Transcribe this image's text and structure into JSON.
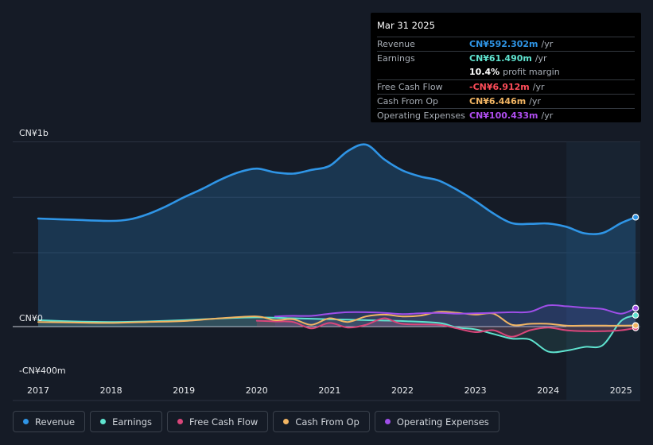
{
  "tooltip": {
    "date": "Mar 31 2025",
    "rows": [
      {
        "label": "Revenue",
        "value": "CN¥592.302m",
        "unit": "/yr",
        "color": "#2f95e6"
      },
      {
        "label": "Earnings",
        "value": "CN¥61.490m",
        "unit": "/yr",
        "color": "#5fe3cf"
      },
      {
        "label": "",
        "value": "10.4%",
        "unit": "profit margin",
        "color": "#ffffff"
      },
      {
        "label": "Free Cash Flow",
        "value": "-CN¥6.912m",
        "unit": "/yr",
        "color": "#ff4d5a"
      },
      {
        "label": "Cash From Op",
        "value": "CN¥6.446m",
        "unit": "/yr",
        "color": "#f2b563"
      },
      {
        "label": "Operating Expenses",
        "value": "CN¥100.433m",
        "unit": "/yr",
        "color": "#b04ef0"
      }
    ]
  },
  "legend": [
    {
      "label": "Revenue",
      "color": "#2f95e6"
    },
    {
      "label": "Earnings",
      "color": "#5fe3cf"
    },
    {
      "label": "Free Cash Flow",
      "color": "#d9467a"
    },
    {
      "label": "Cash From Op",
      "color": "#f2b563"
    },
    {
      "label": "Operating Expenses",
      "color": "#9f4ee8"
    }
  ],
  "chart_data": {
    "type": "area",
    "y_labels": {
      "top": "CN¥1b",
      "zero": "CN¥0",
      "bottom": "-CN¥400m"
    },
    "ylim": [
      -400,
      1000
    ],
    "x_ticks": [
      "2017",
      "2018",
      "2019",
      "2020",
      "2021",
      "2022",
      "2023",
      "2024",
      "2025"
    ],
    "xlim": [
      2016.7,
      2025.25
    ],
    "forecast_shade_start": 2024.25,
    "series": [
      {
        "name": "Revenue",
        "color": "#2f95e6",
        "fill": true,
        "points": [
          [
            2017.0,
            585
          ],
          [
            2017.5,
            578
          ],
          [
            2018.0,
            572
          ],
          [
            2018.25,
            580
          ],
          [
            2018.5,
            608
          ],
          [
            2018.75,
            650
          ],
          [
            2019.0,
            700
          ],
          [
            2019.25,
            745
          ],
          [
            2019.5,
            795
          ],
          [
            2019.75,
            835
          ],
          [
            2020.0,
            855
          ],
          [
            2020.25,
            835
          ],
          [
            2020.5,
            828
          ],
          [
            2020.75,
            848
          ],
          [
            2021.0,
            870
          ],
          [
            2021.25,
            950
          ],
          [
            2021.5,
            985
          ],
          [
            2021.75,
            905
          ],
          [
            2022.0,
            845
          ],
          [
            2022.25,
            812
          ],
          [
            2022.5,
            790
          ],
          [
            2022.75,
            740
          ],
          [
            2023.0,
            680
          ],
          [
            2023.25,
            612
          ],
          [
            2023.5,
            560
          ],
          [
            2023.75,
            556
          ],
          [
            2024.0,
            558
          ],
          [
            2024.25,
            540
          ],
          [
            2024.5,
            505
          ],
          [
            2024.75,
            507
          ],
          [
            2025.0,
            560
          ],
          [
            2025.2,
            592
          ]
        ]
      },
      {
        "name": "Earnings",
        "color": "#5fe3cf",
        "fill": true,
        "points": [
          [
            2017.0,
            35
          ],
          [
            2017.5,
            28
          ],
          [
            2018.0,
            25
          ],
          [
            2018.5,
            28
          ],
          [
            2019.0,
            35
          ],
          [
            2019.5,
            44
          ],
          [
            2020.0,
            50
          ],
          [
            2020.5,
            45
          ],
          [
            2021.0,
            40
          ],
          [
            2021.5,
            35
          ],
          [
            2022.0,
            30
          ],
          [
            2022.5,
            20
          ],
          [
            2022.75,
            -5
          ],
          [
            2023.0,
            -15
          ],
          [
            2023.25,
            -40
          ],
          [
            2023.5,
            -65
          ],
          [
            2023.75,
            -70
          ],
          [
            2024.0,
            -135
          ],
          [
            2024.25,
            -130
          ],
          [
            2024.5,
            -110
          ],
          [
            2024.75,
            -100
          ],
          [
            2025.0,
            30
          ],
          [
            2025.2,
            61
          ]
        ]
      },
      {
        "name": "Free Cash Flow",
        "color": "#d9467a",
        "fill": true,
        "points": [
          [
            2020.0,
            32
          ],
          [
            2020.25,
            28
          ],
          [
            2020.5,
            25
          ],
          [
            2020.75,
            -10
          ],
          [
            2021.0,
            20
          ],
          [
            2021.25,
            -5
          ],
          [
            2021.5,
            10
          ],
          [
            2021.75,
            45
          ],
          [
            2022.0,
            15
          ],
          [
            2022.5,
            10
          ],
          [
            2022.75,
            -10
          ],
          [
            2023.0,
            -30
          ],
          [
            2023.25,
            -20
          ],
          [
            2023.5,
            -55
          ],
          [
            2023.75,
            -20
          ],
          [
            2024.0,
            -5
          ],
          [
            2024.25,
            -20
          ],
          [
            2024.5,
            -25
          ],
          [
            2024.75,
            -25
          ],
          [
            2025.0,
            -20
          ],
          [
            2025.2,
            -7
          ]
        ]
      },
      {
        "name": "Cash From Op",
        "color": "#f2b563",
        "fill": true,
        "points": [
          [
            2017.0,
            25
          ],
          [
            2017.5,
            22
          ],
          [
            2018.0,
            20
          ],
          [
            2018.5,
            25
          ],
          [
            2019.0,
            30
          ],
          [
            2019.5,
            45
          ],
          [
            2020.0,
            55
          ],
          [
            2020.25,
            35
          ],
          [
            2020.5,
            40
          ],
          [
            2020.75,
            10
          ],
          [
            2021.0,
            45
          ],
          [
            2021.25,
            25
          ],
          [
            2021.5,
            55
          ],
          [
            2021.75,
            65
          ],
          [
            2022.0,
            55
          ],
          [
            2022.25,
            60
          ],
          [
            2022.5,
            80
          ],
          [
            2022.75,
            75
          ],
          [
            2023.0,
            65
          ],
          [
            2023.25,
            70
          ],
          [
            2023.5,
            10
          ],
          [
            2023.75,
            15
          ],
          [
            2024.0,
            15
          ],
          [
            2024.25,
            5
          ],
          [
            2024.5,
            5
          ],
          [
            2024.75,
            5
          ],
          [
            2025.0,
            5
          ],
          [
            2025.2,
            6
          ]
        ]
      },
      {
        "name": "Operating Expenses",
        "color": "#9f4ee8",
        "fill": true,
        "points": [
          [
            2020.25,
            55
          ],
          [
            2020.5,
            58
          ],
          [
            2020.75,
            58
          ],
          [
            2021.0,
            70
          ],
          [
            2021.25,
            78
          ],
          [
            2021.5,
            78
          ],
          [
            2021.75,
            74
          ],
          [
            2022.0,
            68
          ],
          [
            2022.25,
            72
          ],
          [
            2022.5,
            74
          ],
          [
            2022.75,
            70
          ],
          [
            2023.0,
            72
          ],
          [
            2023.25,
            75
          ],
          [
            2023.5,
            78
          ],
          [
            2023.75,
            80
          ],
          [
            2024.0,
            115
          ],
          [
            2024.25,
            110
          ],
          [
            2024.5,
            102
          ],
          [
            2024.75,
            95
          ],
          [
            2025.0,
            70
          ],
          [
            2025.2,
            100
          ]
        ]
      }
    ]
  }
}
